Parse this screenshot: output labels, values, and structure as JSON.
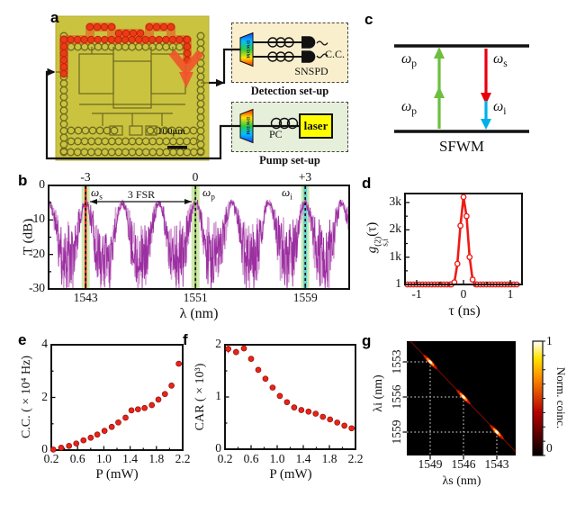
{
  "letters": {
    "a": "a",
    "b": "b",
    "c": "c",
    "d": "d",
    "e": "e",
    "f": "f",
    "g": "g"
  },
  "panel_a": {
    "scale_bar": "100μm",
    "detection": {
      "title": "Detection set-up",
      "dwdm": "DWDM",
      "snspd": "SNSPD",
      "cc": "C.C."
    },
    "pump": {
      "title": "Pump set-up",
      "dwdm": "DWDM",
      "pc": "PC",
      "laser": "laser"
    }
  },
  "panel_c": {
    "labels": {
      "pump_top": {
        "sym": "ω",
        "sub": "p"
      },
      "pump_bottom": {
        "sym": "ω",
        "sub": "p"
      },
      "signal": {
        "sym": "ω",
        "sub": "s"
      },
      "idler": {
        "sym": "ω",
        "sub": "i"
      }
    },
    "caption": "SFWM",
    "colors": {
      "pump": "#6cbf3f",
      "signal": "#e8000d",
      "idler": "#00b0e8",
      "level": "#111111"
    }
  },
  "chart_data": [
    {
      "id": "b",
      "type": "line",
      "xlabel": "λ (nm)",
      "ylabel": "T (dB)",
      "xlim": [
        1540.3,
        1562.2
      ],
      "ylim": [
        -30,
        0
      ],
      "xticks": [
        1543,
        1551,
        1559
      ],
      "yticks": [
        0,
        -10,
        -20,
        -30
      ],
      "top_labels": [
        "-3",
        "0",
        "+3"
      ],
      "markers": [
        {
          "wavelength_nm": 1543,
          "sym": "ω",
          "sub": "s",
          "line_color": "#e32118"
        },
        {
          "wavelength_nm": 1551,
          "sym": "ω",
          "sub": "p",
          "line_color": "#86b94c"
        },
        {
          "wavelength_nm": 1559,
          "sym": "ω",
          "sub": "i",
          "line_color": "#3ccde6"
        }
      ],
      "fsr_label": "3 FSR",
      "resonances_nm": [
        1540.33,
        1543,
        1545.67,
        1548.33,
        1551,
        1553.67,
        1556.33,
        1559,
        1561.67
      ],
      "peak_level_dB": -5,
      "noise_floor_dB": -30,
      "colors": {
        "trace": "#9b2fa0",
        "trace_light": "#cf92cf",
        "band": "rgba(151,204,72,0.45)",
        "idler_band": "rgba(60,205,230,0.8)"
      },
      "seed": 11
    },
    {
      "id": "d",
      "type": "line_markers",
      "xlabel": "τ (ns)",
      "ylabel_parts": {
        "base": "g",
        "sup": "(2)",
        "sub": "s,i",
        "arg": "(τ)"
      },
      "xticks": [
        -1,
        0,
        1
      ],
      "ytick_labels": [
        "1",
        "1k",
        "2k",
        "3k"
      ],
      "ytick_values": [
        1,
        1000,
        2000,
        3000
      ],
      "xlim": [
        -1.25,
        1.25
      ],
      "ylim": [
        1,
        3350
      ],
      "peak_points": [
        [
          -0.26,
          3
        ],
        [
          -0.195,
          80
        ],
        [
          -0.13,
          760
        ],
        [
          -0.065,
          2150
        ],
        [
          0,
          3200
        ],
        [
          0.065,
          2500
        ],
        [
          0.13,
          1000
        ],
        [
          0.195,
          180
        ],
        [
          0.26,
          6
        ]
      ],
      "baseline_value": 1,
      "baseline_range": [
        -1.2,
        1.2
      ],
      "marker_step_ns": 0.065,
      "color": "#ee1b15"
    },
    {
      "id": "e",
      "type": "scatter",
      "xlabel": "P (mW)",
      "ylabel": "C.C. ( × 10⁴ Hz)",
      "xticks": [
        0.2,
        0.6,
        1.0,
        1.4,
        1.8,
        2.2
      ],
      "yticks": [
        0,
        2,
        4
      ],
      "xlim": [
        0.2,
        2.2
      ],
      "ylim": [
        0,
        4
      ],
      "points": [
        [
          0.23,
          0.02
        ],
        [
          0.35,
          0.09
        ],
        [
          0.47,
          0.16
        ],
        [
          0.58,
          0.25
        ],
        [
          0.69,
          0.37
        ],
        [
          0.8,
          0.47
        ],
        [
          0.9,
          0.59
        ],
        [
          1.01,
          0.73
        ],
        [
          1.12,
          0.88
        ],
        [
          1.22,
          1.05
        ],
        [
          1.33,
          1.23
        ],
        [
          1.42,
          1.51
        ],
        [
          1.52,
          1.55
        ],
        [
          1.62,
          1.6
        ],
        [
          1.73,
          1.71
        ],
        [
          1.83,
          1.92
        ],
        [
          1.93,
          2.13
        ],
        [
          2.03,
          2.45
        ],
        [
          2.14,
          3.28
        ]
      ],
      "color": "#e8231a"
    },
    {
      "id": "f",
      "type": "scatter",
      "xlabel": "P (mW)",
      "ylabel": "CAR ( × 10³)",
      "xticks": [
        0.2,
        0.6,
        1.0,
        1.4,
        1.8,
        2.2
      ],
      "yticks": [
        0,
        1,
        2
      ],
      "xlim": [
        0.2,
        2.2
      ],
      "ylim": [
        0,
        2
      ],
      "points": [
        [
          0.25,
          1.92,
          0.08
        ],
        [
          0.37,
          1.86,
          0.06
        ],
        [
          0.49,
          1.93,
          0.05
        ],
        [
          0.6,
          1.73
        ],
        [
          0.71,
          1.52
        ],
        [
          0.82,
          1.35
        ],
        [
          0.93,
          1.18
        ],
        [
          1.04,
          1.02
        ],
        [
          1.15,
          0.9
        ],
        [
          1.26,
          0.8
        ],
        [
          1.37,
          0.75
        ],
        [
          1.48,
          0.72
        ],
        [
          1.59,
          0.68
        ],
        [
          1.7,
          0.62
        ],
        [
          1.81,
          0.57
        ],
        [
          1.92,
          0.51
        ],
        [
          2.03,
          0.45
        ],
        [
          2.14,
          0.4
        ]
      ],
      "color": "#e8231a"
    },
    {
      "id": "g",
      "type": "heatmap",
      "xlabel": "λs (nm)",
      "ylabel": "λi (nm)",
      "xticks": [
        1549,
        1546,
        1543
      ],
      "yticks": [
        1553,
        1556,
        1559
      ],
      "x_descending": true,
      "spots": [
        {
          "signal_nm": 1549,
          "idler_nm": 1553,
          "norm_coinc": 1
        },
        {
          "signal_nm": 1546,
          "idler_nm": 1556,
          "norm_coinc": 1
        },
        {
          "signal_nm": 1543,
          "idler_nm": 1559,
          "norm_coinc": 1
        }
      ],
      "diagonal_visible": true,
      "bg": "#000000",
      "colorbar": {
        "label": "Norm. coinc.",
        "tick_labels": [
          "1",
          "0"
        ],
        "ticks": [
          1,
          0
        ],
        "colormap": "hot",
        "stops_top_to_bottom": [
          "#ffffff",
          "#ffe400",
          "#ff8c00",
          "#b80000",
          "#000000"
        ]
      }
    }
  ]
}
